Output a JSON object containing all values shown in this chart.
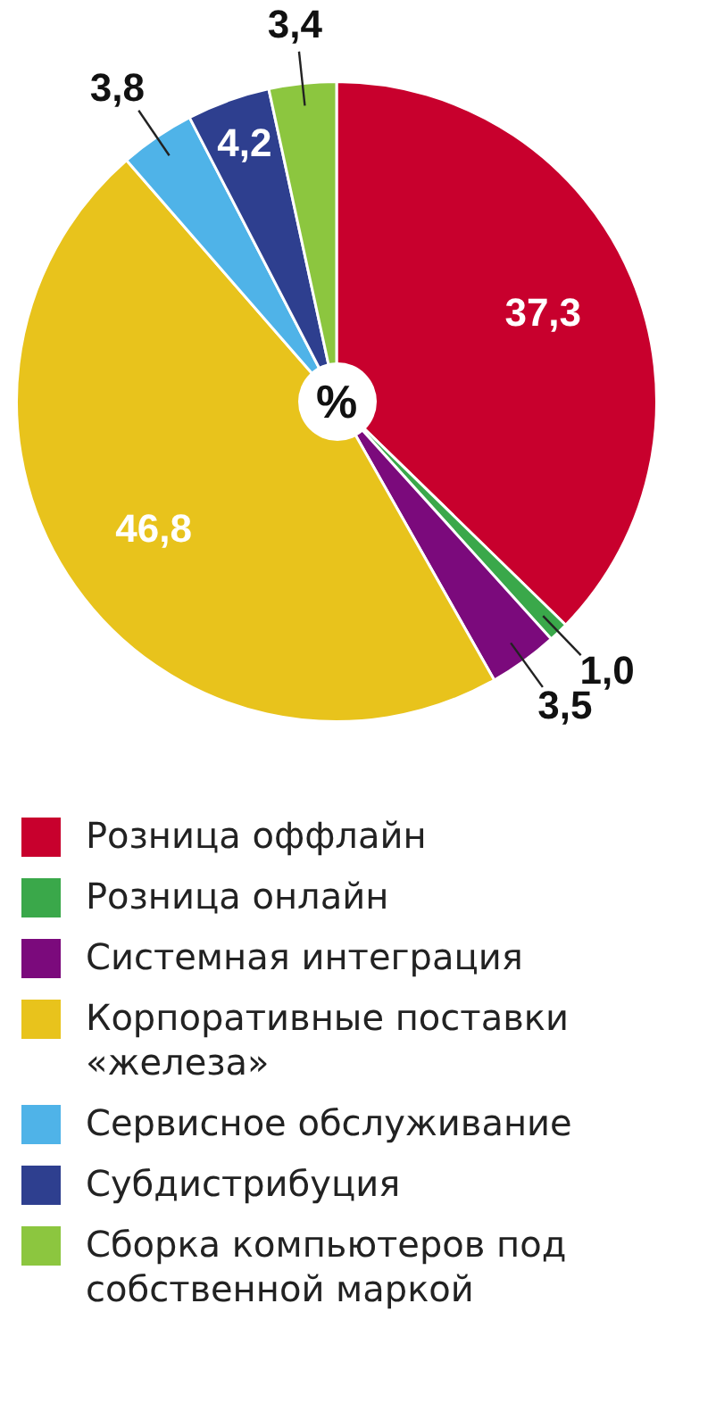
{
  "chart_data": {
    "type": "pie",
    "categories": [
      "Розница оффлайн",
      "Розница онлайн",
      "Системная интеграция",
      "Корпоративные поставки «железа»",
      "Сервисное обслуживание",
      "Субдистрибуция",
      "Сборка компьютеров под собственной маркой"
    ],
    "values": [
      37.3,
      1.0,
      3.5,
      46.8,
      3.8,
      4.2,
      3.4
    ],
    "value_labels": [
      "37,3",
      "1,0",
      "3,5",
      "46,8",
      "3,8",
      "4,2",
      "3,4"
    ],
    "colors": [
      "#c8002d",
      "#3aa84a",
      "#7b0a7c",
      "#e8c31c",
      "#4fb3e8",
      "#2e3f8f",
      "#8cc63f"
    ],
    "annotations": [
      "%"
    ],
    "legend": "bottom"
  }
}
